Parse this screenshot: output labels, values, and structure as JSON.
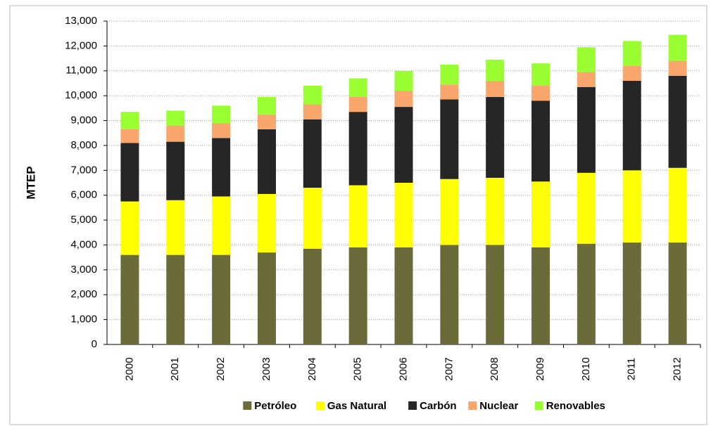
{
  "chart_data": {
    "type": "stacked_bar",
    "y_label": "MTEP",
    "categories": [
      "2000",
      "2001",
      "2002",
      "2003",
      "2004",
      "2005",
      "2006",
      "2007",
      "2008",
      "2009",
      "2010",
      "2011",
      "2012"
    ],
    "series": [
      {
        "name": "Petróleo",
        "color": "#6b6b3a",
        "values": [
          3600,
          3600,
          3600,
          3700,
          3850,
          3900,
          3900,
          4000,
          4000,
          3900,
          4050,
          4100,
          4100
        ]
      },
      {
        "name": "Gas Natural",
        "color": "#ffff00",
        "values": [
          2150,
          2200,
          2350,
          2350,
          2450,
          2500,
          2600,
          2650,
          2700,
          2650,
          2850,
          2900,
          3000
        ]
      },
      {
        "name": "Carbón",
        "color": "#262626",
        "values": [
          2350,
          2350,
          2350,
          2600,
          2750,
          2950,
          3050,
          3200,
          3250,
          3250,
          3450,
          3600,
          3700
        ]
      },
      {
        "name": "Nuclear",
        "color": "#f9a66c",
        "values": [
          550,
          650,
          600,
          600,
          600,
          600,
          650,
          600,
          650,
          600,
          600,
          600,
          600
        ]
      },
      {
        "name": "Renovables",
        "color": "#99ff33",
        "values": [
          700,
          600,
          700,
          700,
          750,
          750,
          800,
          800,
          850,
          900,
          1000,
          1000,
          1050
        ]
      }
    ],
    "ylim": [
      0,
      13000
    ],
    "yticks": [
      0,
      {
        "value": 1000,
        "label": "1,000"
      },
      {
        "value": 2000,
        "label": "2,000"
      },
      {
        "value": 3000,
        "label": "3,000"
      },
      {
        "value": 4000,
        "label": "4,000"
      },
      {
        "value": 5000,
        "label": "5,000"
      },
      {
        "value": 6000,
        "label": "6,000"
      },
      {
        "value": 7000,
        "label": "7,000"
      },
      {
        "value": 8000,
        "label": "8,000"
      },
      {
        "value": 9000,
        "label": "9,000"
      },
      {
        "value": 10000,
        "label": "10,000"
      },
      {
        "value": 11000,
        "label": "11,000"
      },
      {
        "value": 12000,
        "label": "12,000"
      },
      {
        "value": 13000,
        "label": "13,000"
      }
    ],
    "grid": true
  }
}
